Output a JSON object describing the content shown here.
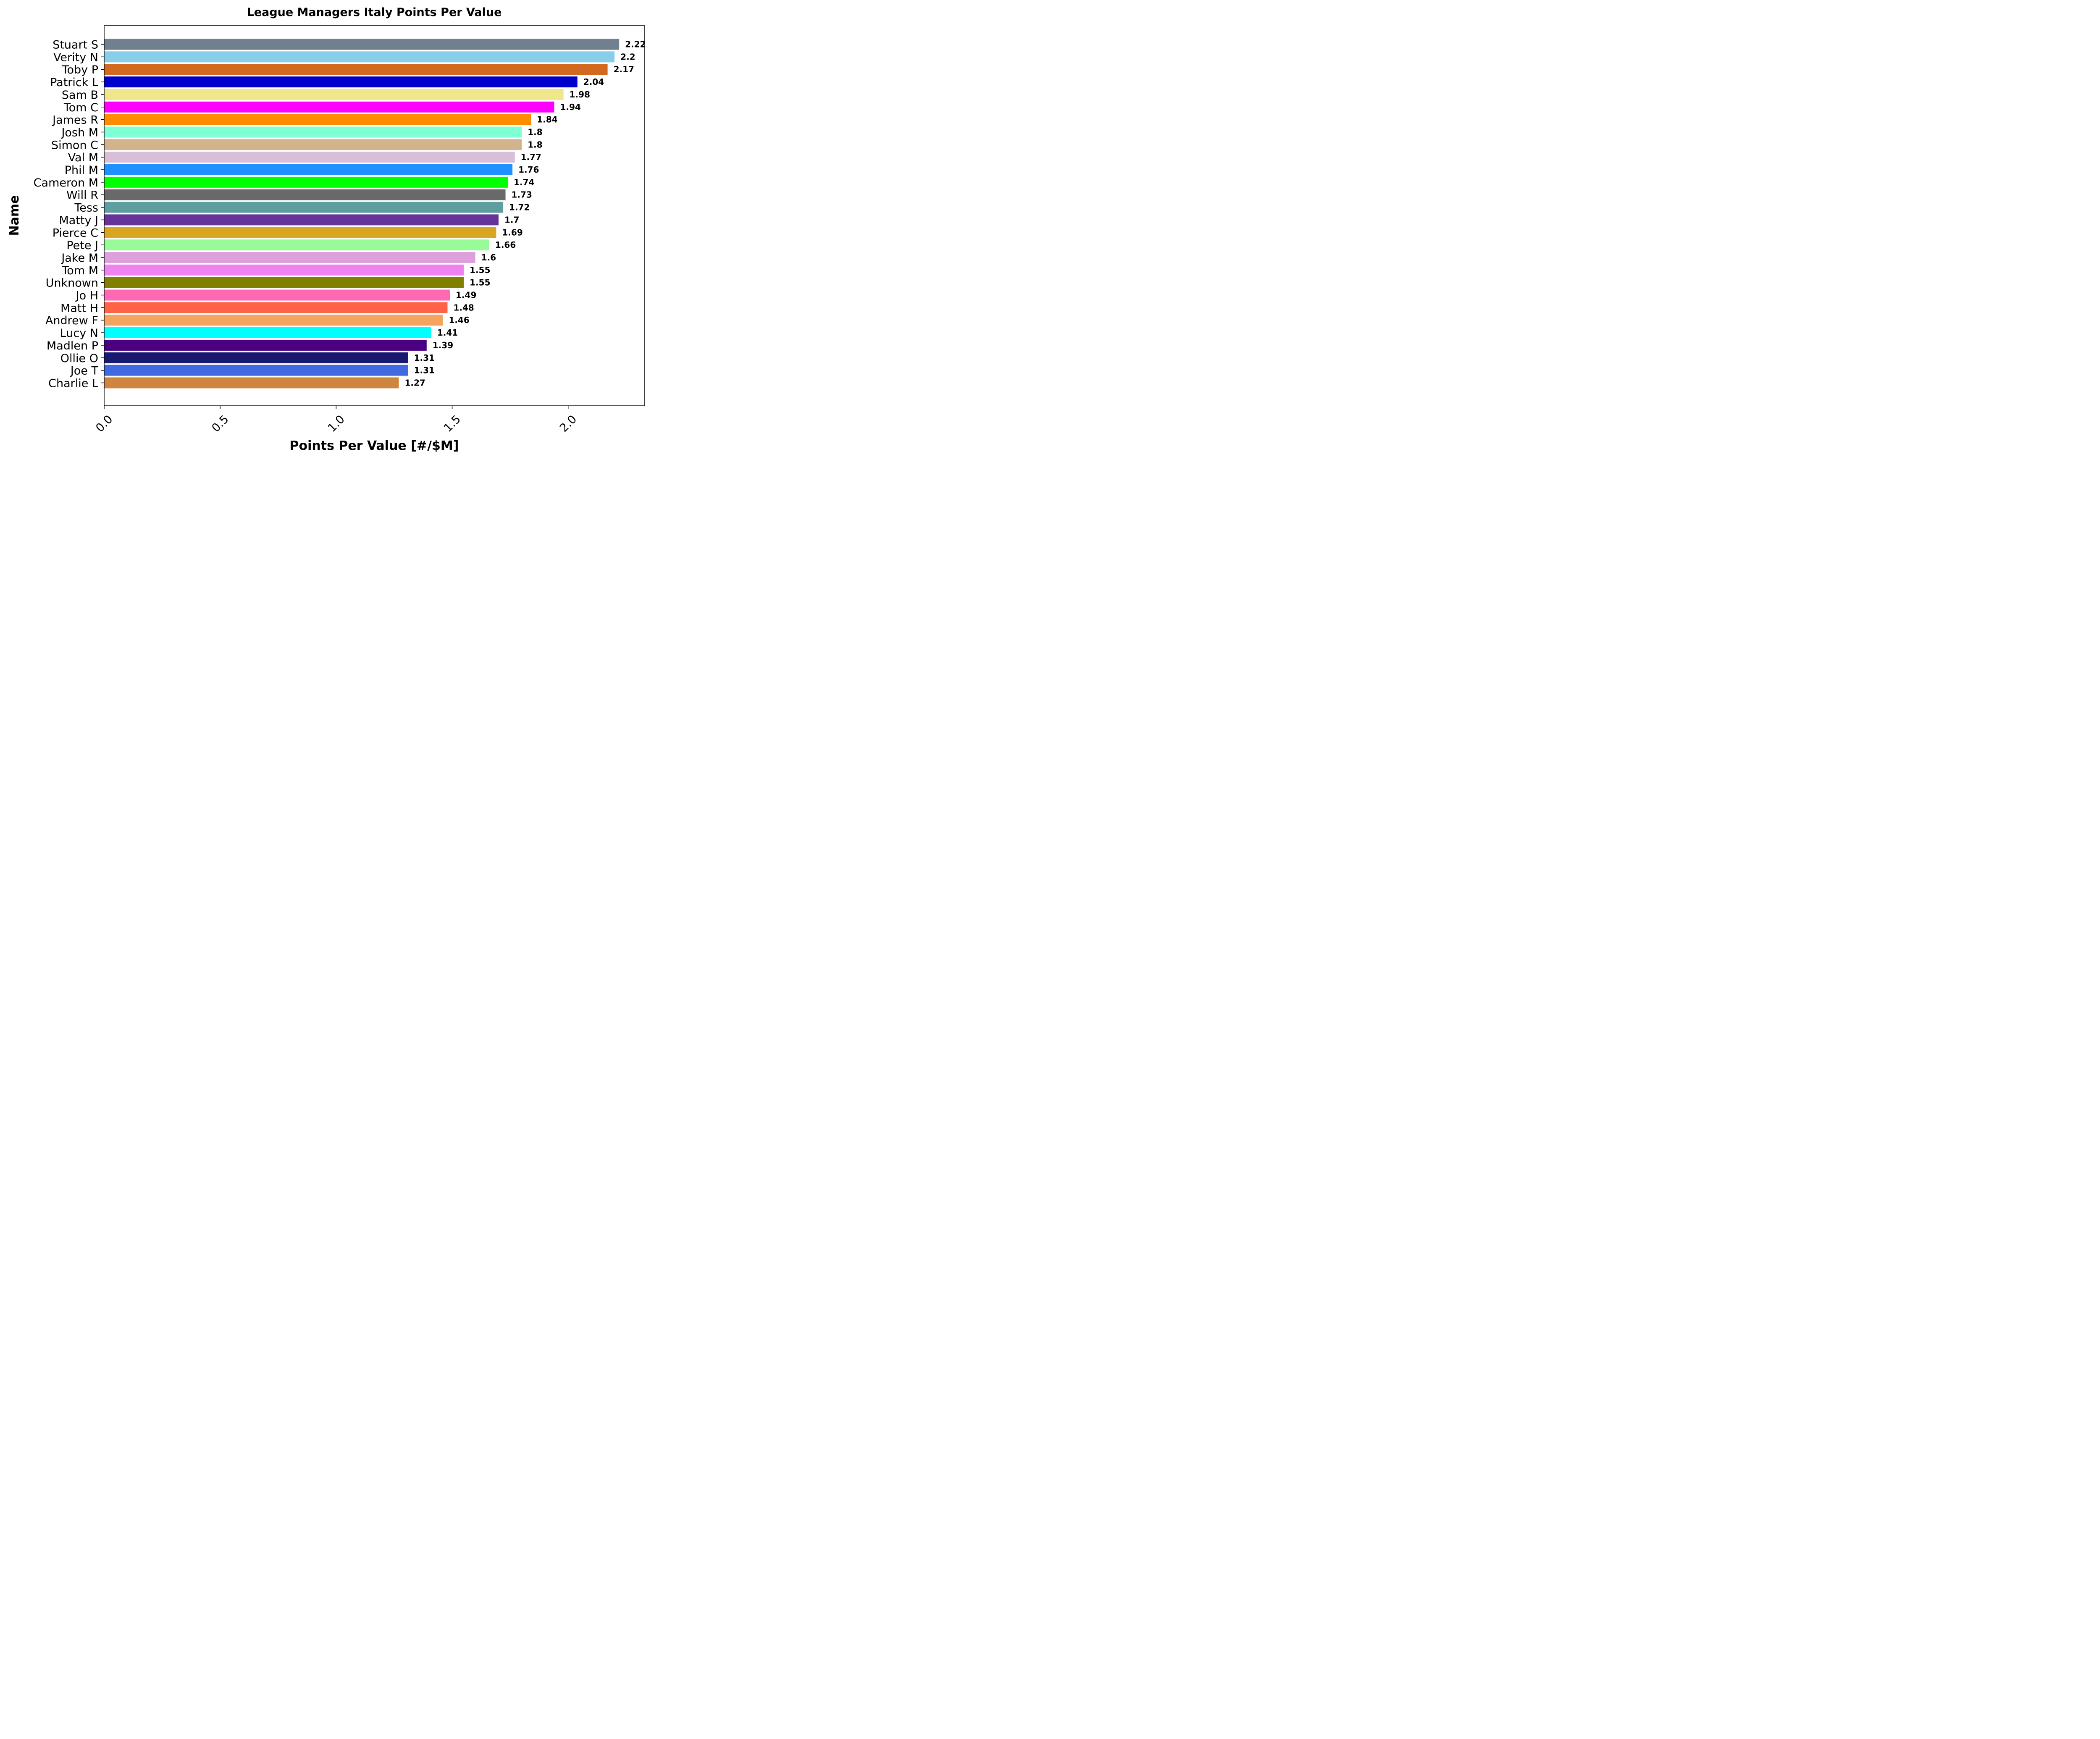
{
  "chart_data": {
    "type": "bar",
    "orientation": "horizontal",
    "title": "League Managers Italy Points Per Value",
    "xlabel": "Points Per Value [#/$M]",
    "ylabel": "Name",
    "xlim": [
      0,
      2.33
    ],
    "xticks": [
      "0.0",
      "0.5",
      "1.0",
      "1.5",
      "2.0"
    ],
    "xtick_values": [
      0,
      0.5,
      1.0,
      1.5,
      2.0
    ],
    "grid": false,
    "bars": [
      {
        "name": "Stuart S",
        "value": 2.22,
        "label": "2.22",
        "color": "#708090"
      },
      {
        "name": "Verity N",
        "value": 2.2,
        "label": "2.2",
        "color": "#87CEEB"
      },
      {
        "name": "Toby P",
        "value": 2.17,
        "label": "2.17",
        "color": "#D2691E"
      },
      {
        "name": "Patrick L",
        "value": 2.04,
        "label": "2.04",
        "color": "#0000CD"
      },
      {
        "name": "Sam B",
        "value": 1.98,
        "label": "1.98",
        "color": "#F0E68C"
      },
      {
        "name": "Tom C",
        "value": 1.94,
        "label": "1.94",
        "color": "#FF00FF"
      },
      {
        "name": "James R",
        "value": 1.84,
        "label": "1.84",
        "color": "#FF8C00"
      },
      {
        "name": "Josh M",
        "value": 1.8,
        "label": "1.8",
        "color": "#7FFFD4"
      },
      {
        "name": "Simon C",
        "value": 1.8,
        "label": "1.8",
        "color": "#D2B48C"
      },
      {
        "name": "Val M",
        "value": 1.77,
        "label": "1.77",
        "color": "#D8BFD8"
      },
      {
        "name": "Phil M",
        "value": 1.76,
        "label": "1.76",
        "color": "#1E90FF"
      },
      {
        "name": "Cameron M",
        "value": 1.74,
        "label": "1.74",
        "color": "#00FF00"
      },
      {
        "name": "Will R",
        "value": 1.73,
        "label": "1.73",
        "color": "#696969"
      },
      {
        "name": "Tess",
        "value": 1.72,
        "label": "1.72",
        "color": "#5F9EA0"
      },
      {
        "name": "Matty J",
        "value": 1.7,
        "label": "1.7",
        "color": "#663399"
      },
      {
        "name": "Pierce C",
        "value": 1.69,
        "label": "1.69",
        "color": "#DAA520"
      },
      {
        "name": "Pete J",
        "value": 1.66,
        "label": "1.66",
        "color": "#98FB98"
      },
      {
        "name": "Jake M",
        "value": 1.6,
        "label": "1.6",
        "color": "#DDA0DD"
      },
      {
        "name": "Tom M",
        "value": 1.55,
        "label": "1.55",
        "color": "#EE82EE"
      },
      {
        "name": "Unknown",
        "value": 1.55,
        "label": "1.55",
        "color": "#808000"
      },
      {
        "name": "Jo H",
        "value": 1.49,
        "label": "1.49",
        "color": "#FF69B4"
      },
      {
        "name": "Matt H",
        "value": 1.48,
        "label": "1.48",
        "color": "#FF6347"
      },
      {
        "name": "Andrew F",
        "value": 1.46,
        "label": "1.46",
        "color": "#F4A460"
      },
      {
        "name": "Lucy N",
        "value": 1.41,
        "label": "1.41",
        "color": "#00FFFF"
      },
      {
        "name": "Madlen P",
        "value": 1.39,
        "label": "1.39",
        "color": "#4B0082"
      },
      {
        "name": "Ollie O",
        "value": 1.31,
        "label": "1.31",
        "color": "#191970"
      },
      {
        "name": "Joe T",
        "value": 1.31,
        "label": "1.31",
        "color": "#4169E1"
      },
      {
        "name": "Charlie L",
        "value": 1.27,
        "label": "1.27",
        "color": "#CD853F"
      }
    ]
  }
}
